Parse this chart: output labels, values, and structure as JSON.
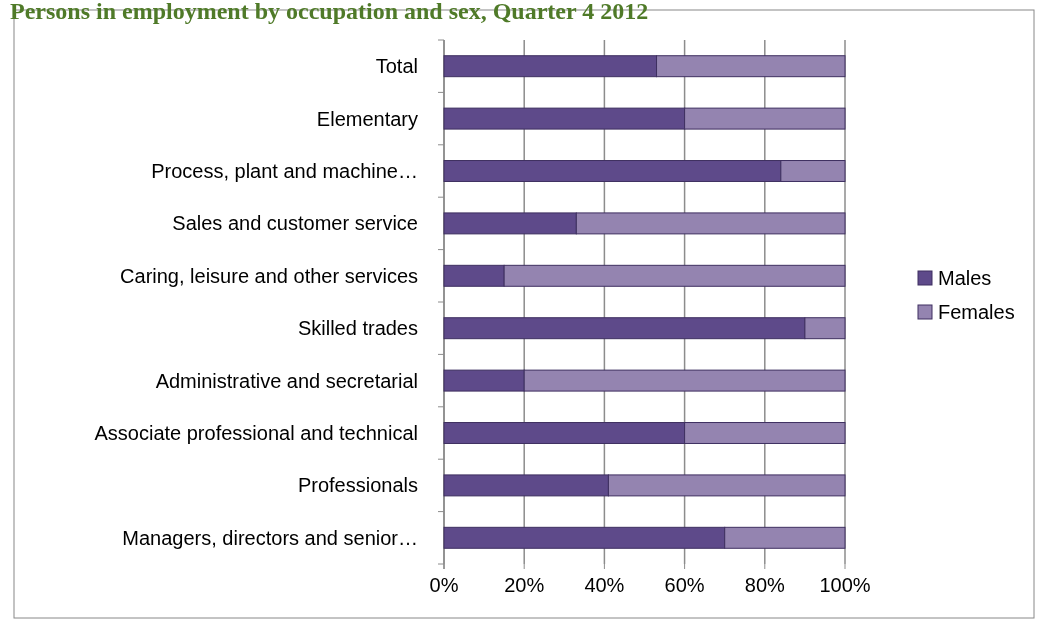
{
  "chart_data": {
    "type": "bar",
    "orientation": "horizontal",
    "stacked": true,
    "title": "Persons in employment by occupation and sex, Quarter 4 2012",
    "categories": [
      "Total",
      "Elementary",
      "Process, plant and machine…",
      "Sales and customer service",
      "Caring, leisure and other services",
      "Skilled trades",
      "Administrative and secretarial",
      "Associate professional and technical",
      "Professionals",
      "Managers, directors and senior…"
    ],
    "series": [
      {
        "name": "Males",
        "color": "#5e4a8a",
        "values": [
          53,
          60,
          84,
          33,
          15,
          90,
          20,
          60,
          41,
          70
        ]
      },
      {
        "name": "Females",
        "color": "#9484b0",
        "values": [
          47,
          40,
          16,
          67,
          85,
          10,
          80,
          40,
          59,
          30
        ]
      }
    ],
    "xlim": [
      0,
      100
    ],
    "xticks": [
      {
        "value": 0,
        "label": "0%"
      },
      {
        "value": 20,
        "label": "20%"
      },
      {
        "value": 40,
        "label": "40%"
      },
      {
        "value": 60,
        "label": "60%"
      },
      {
        "value": 80,
        "label": "80%"
      },
      {
        "value": 100,
        "label": "100%"
      }
    ],
    "grid": "x",
    "legend": "right"
  }
}
